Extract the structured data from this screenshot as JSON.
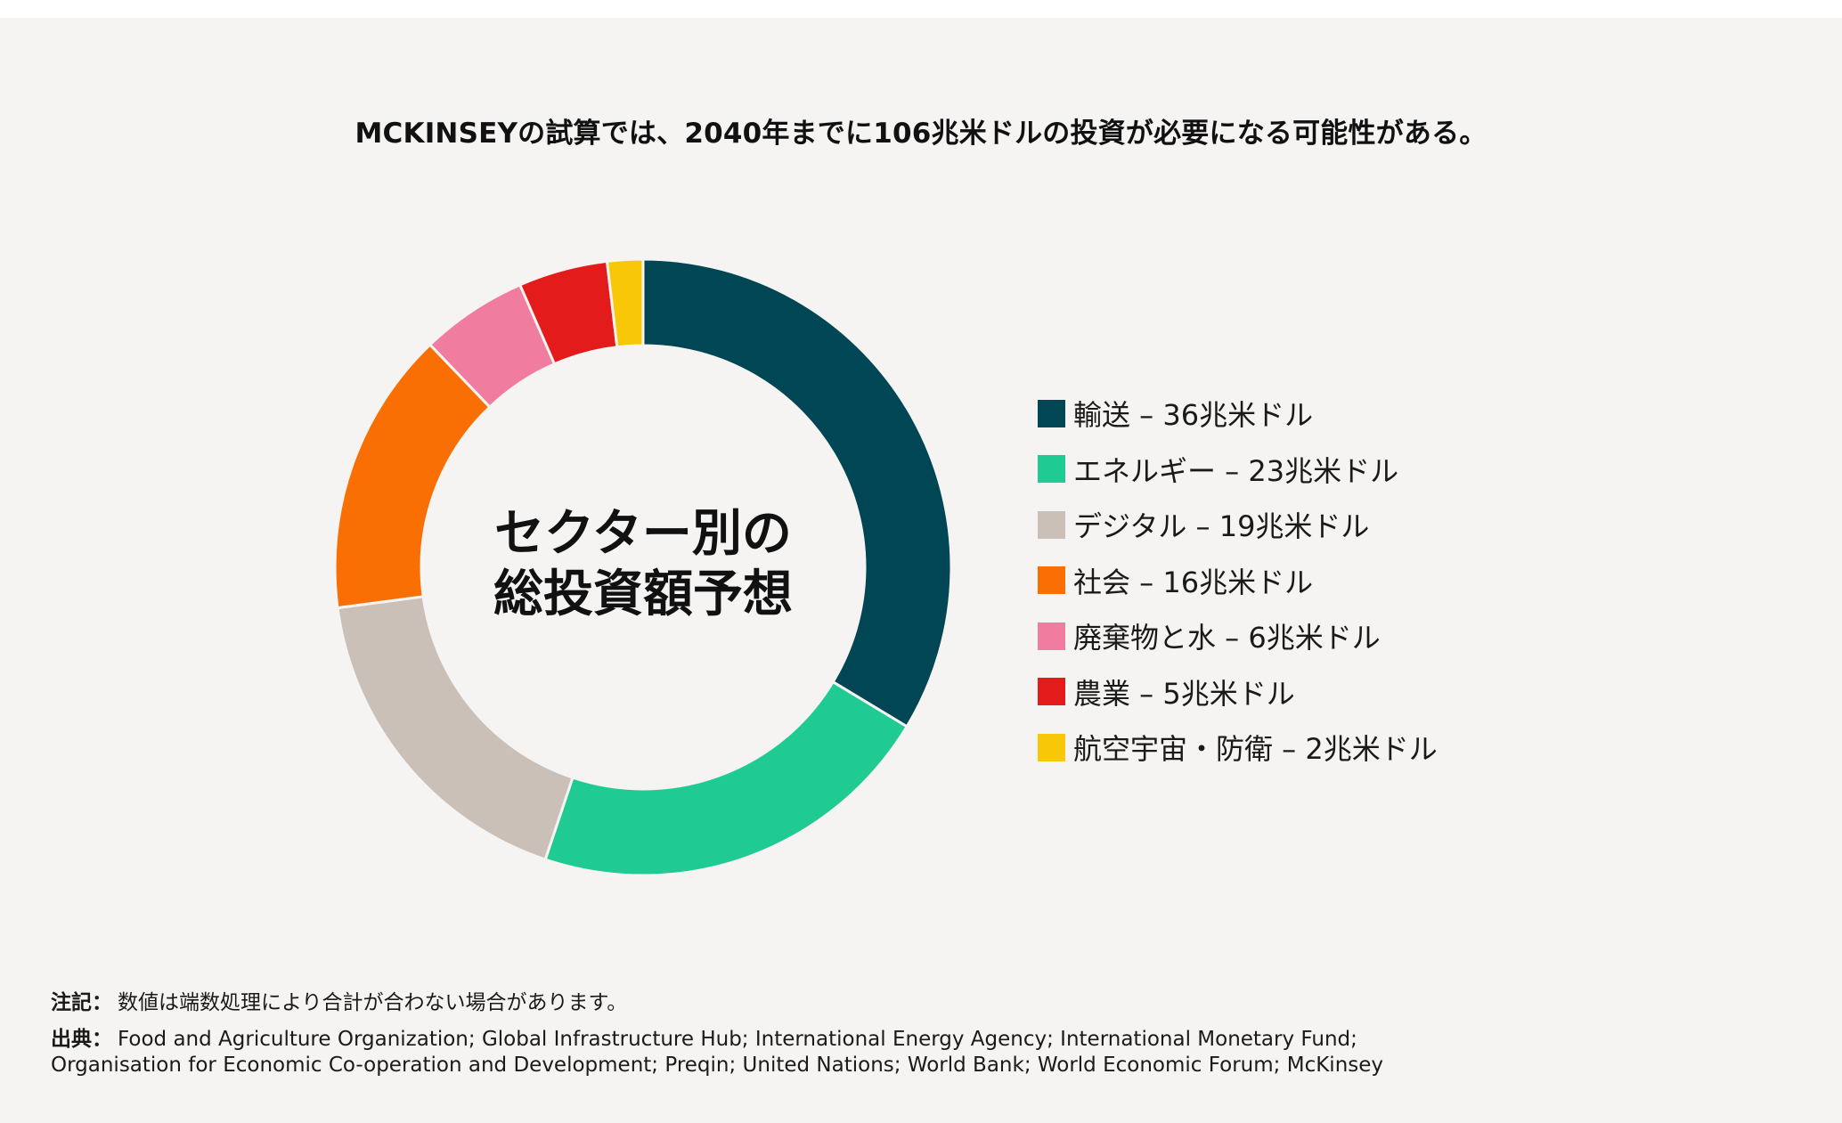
{
  "header": {
    "title": "MCKINSEYの試算では、2040年までに106兆米ドルの投資が必要になる可能性がある。"
  },
  "chart_data": {
    "type": "pie",
    "variant": "donut",
    "center_label": [
      "セクター別の",
      "総投資額予想"
    ],
    "unit": "兆米ドル",
    "legend_position": "right",
    "slices": [
      {
        "label": "輸送 – 36兆米ドル",
        "value": 36,
        "color": "#004654"
      },
      {
        "label": "エネルギー – 23兆米ドル",
        "value": 23,
        "color": "#1fcb93"
      },
      {
        "label": "デジタル – 19兆米ドル",
        "value": 19,
        "color": "#cbc0b8"
      },
      {
        "label": "社会 – 16兆米ドル",
        "value": 16,
        "color": "#f96f04"
      },
      {
        "label": "廃棄物と水 – 6兆米ドル",
        "value": 6,
        "color": "#f07d9f"
      },
      {
        "label": "農業 – 5兆米ドル",
        "value": 5,
        "color": "#e41b1b"
      },
      {
        "label": "航空宇宙・防衛 – 2兆米ドル",
        "value": 2,
        "color": "#f8c808"
      }
    ]
  },
  "footnotes": {
    "note_head": "注記：",
    "note_text": "数値は端数処理により合計が合わない場合があります。",
    "source_head": "出典：",
    "source_line1": "Food and Agriculture Organization; Global Infrastructure Hub; International Energy Agency; International Monetary Fund;",
    "source_line2": "Organisation for Economic Co-operation and Development; Preqin; United Nations; World Bank; World Economic Forum; McKinsey"
  }
}
